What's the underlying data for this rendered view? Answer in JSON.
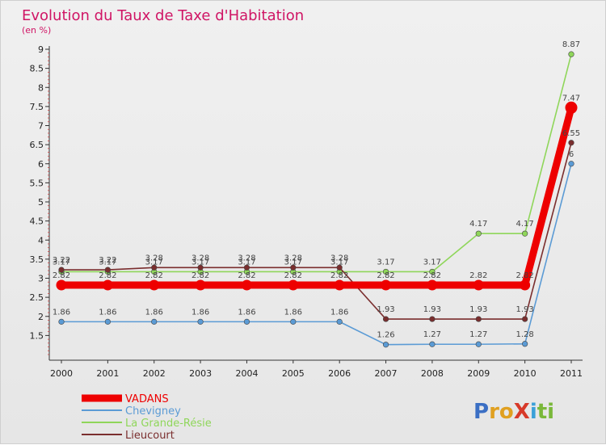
{
  "title": "Evolution du Taux de Taxe d'Habitation",
  "subtitle": "(en %)",
  "logo": {
    "text": "ProXiti",
    "letters": [
      {
        "ch": "P",
        "color": "#3b6fc4"
      },
      {
        "ch": "r",
        "color": "#e0a020"
      },
      {
        "ch": "o",
        "color": "#e0a020"
      },
      {
        "ch": "X",
        "color": "#d73a2a"
      },
      {
        "ch": "i",
        "color": "#3aa0d8"
      },
      {
        "ch": "t",
        "color": "#7ab83a"
      },
      {
        "ch": "i",
        "color": "#7ab83a"
      }
    ]
  },
  "chart_data": {
    "type": "line",
    "title": "Evolution du Taux de Taxe d'Habitation",
    "ylabel": "(en %)",
    "xlabel": "",
    "ylim": [
      1,
      9
    ],
    "yticks": [
      1.5,
      2,
      2.5,
      3,
      3.5,
      4,
      4.5,
      5,
      5.5,
      6,
      6.5,
      7,
      7.5,
      8,
      8.5,
      9
    ],
    "x": [
      "2000",
      "2001",
      "2002",
      "2003",
      "2004",
      "2005",
      "2006",
      "2007",
      "2008",
      "2009",
      "2010",
      "2011"
    ],
    "grid": false,
    "legend_position": "bottom-left",
    "series": [
      {
        "name": "VADANS",
        "color": "#ee0000",
        "emphasis": true,
        "values": [
          2.82,
          2.82,
          2.82,
          2.82,
          2.82,
          2.82,
          2.82,
          2.82,
          2.82,
          2.82,
          2.82,
          7.47
        ],
        "labels": [
          "2.82",
          "2.82",
          "2.82",
          "2.82",
          "2.82",
          "2.82",
          "2.82",
          "2.82",
          "2.82",
          "2.82",
          "2.82",
          "7.47"
        ]
      },
      {
        "name": "Chevigney",
        "color": "#5b9bd5",
        "values": [
          1.86,
          1.86,
          1.86,
          1.86,
          1.86,
          1.86,
          1.86,
          1.26,
          1.27,
          1.27,
          1.28,
          6.0
        ],
        "labels": [
          "1.86",
          "1.86",
          "1.86",
          "1.86",
          "1.86",
          "1.86",
          "1.86",
          "1.26",
          "1.27",
          "1.27",
          "1.28",
          "6"
        ]
      },
      {
        "name": "La Grande-Résie",
        "color": "#8fd65a",
        "values": [
          3.17,
          3.17,
          3.17,
          3.17,
          3.17,
          3.17,
          3.17,
          3.17,
          3.17,
          4.17,
          4.17,
          8.87
        ],
        "labels": [
          "3.17",
          "3.17",
          "3.17",
          "3.17",
          "3.17",
          "3.17",
          "3.17",
          "3.17",
          "3.17",
          "4.17",
          "4.17",
          "8.87"
        ]
      },
      {
        "name": "Lieucourt",
        "color": "#7a2e2e",
        "values": [
          3.22,
          3.22,
          3.28,
          3.28,
          3.28,
          3.28,
          3.28,
          1.93,
          1.93,
          1.93,
          1.93,
          6.55
        ],
        "labels": [
          "3.22",
          "3.22",
          "3.28",
          "3.28",
          "3.28",
          "3.28",
          "3.28",
          "1.93",
          "1.93",
          "1.93",
          "1.93",
          "6.55"
        ]
      }
    ]
  }
}
